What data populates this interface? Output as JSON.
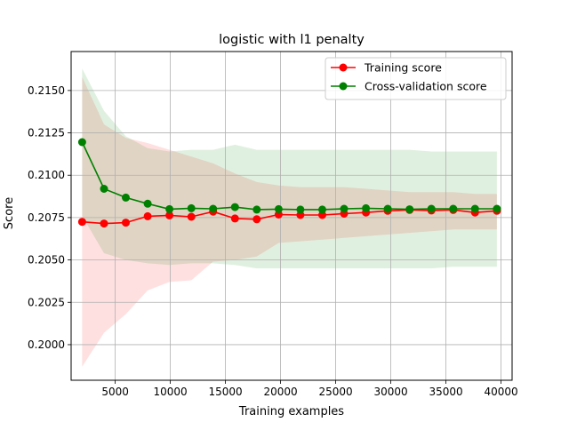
{
  "chart_data": {
    "type": "line",
    "title": "logistic with l1 penalty",
    "xlabel": "Training examples",
    "ylabel": "Score",
    "xlim": [
      1000,
      41000
    ],
    "ylim": [
      0.1979,
      0.2173
    ],
    "x_ticks": [
      5000,
      10000,
      15000,
      20000,
      25000,
      30000,
      35000,
      40000
    ],
    "x_tick_labels": [
      "5000",
      "10000",
      "15000",
      "20000",
      "25000",
      "30000",
      "35000",
      "40000"
    ],
    "y_ticks": [
      0.2,
      0.2025,
      0.205,
      0.2075,
      0.21,
      0.2125,
      0.215
    ],
    "y_tick_labels": [
      "0.2000",
      "0.2025",
      "0.2050",
      "0.2075",
      "0.2100",
      "0.2125",
      "0.2150"
    ],
    "grid": true,
    "legend_position": "top-right",
    "x": [
      2000,
      3980,
      5960,
      7940,
      9920,
      11900,
      13880,
      15860,
      17840,
      19820,
      21800,
      23780,
      25760,
      27740,
      29720,
      31700,
      33680,
      35660,
      37640,
      39620
    ],
    "series": [
      {
        "name": "Training score",
        "color": "#ff0000",
        "band_color": "#ff0000",
        "values": [
          0.20725,
          0.20715,
          0.2072,
          0.20758,
          0.20763,
          0.20755,
          0.20785,
          0.20745,
          0.2074,
          0.20768,
          0.20765,
          0.20765,
          0.20773,
          0.2078,
          0.2079,
          0.20795,
          0.20792,
          0.20795,
          0.2078,
          0.2079
        ],
        "upper": [
          0.2158,
          0.213,
          0.2122,
          0.2119,
          0.2115,
          0.2111,
          0.2107,
          0.2101,
          0.2096,
          0.2094,
          0.2093,
          0.2093,
          0.2093,
          0.2092,
          0.2091,
          0.209,
          0.209,
          0.209,
          0.2089,
          0.2089
        ],
        "lower": [
          0.1987,
          0.2007,
          0.2018,
          0.2032,
          0.2037,
          0.2038,
          0.2049,
          0.205,
          0.2052,
          0.206,
          0.2061,
          0.2062,
          0.2063,
          0.2064,
          0.2065,
          0.2066,
          0.2067,
          0.2068,
          0.2068,
          0.2068
        ]
      },
      {
        "name": "Cross-validation score",
        "color": "#008000",
        "band_color": "#008000",
        "values": [
          0.21195,
          0.2092,
          0.20868,
          0.20832,
          0.208,
          0.20805,
          0.20802,
          0.20812,
          0.20797,
          0.208,
          0.20797,
          0.20797,
          0.20802,
          0.20805,
          0.20802,
          0.20799,
          0.20802,
          0.20802,
          0.20802,
          0.20802
        ],
        "upper": [
          0.2163,
          0.2138,
          0.2123,
          0.2116,
          0.2114,
          0.2115,
          0.2115,
          0.2118,
          0.2115,
          0.2115,
          0.2115,
          0.2115,
          0.2115,
          0.2115,
          0.2115,
          0.2115,
          0.2114,
          0.2114,
          0.2114,
          0.2114
        ],
        "lower": [
          0.2076,
          0.2054,
          0.205,
          0.2048,
          0.2047,
          0.2048,
          0.2048,
          0.2047,
          0.2045,
          0.2045,
          0.2045,
          0.2045,
          0.2045,
          0.2045,
          0.2045,
          0.2045,
          0.2045,
          0.2046,
          0.2046,
          0.2046
        ]
      }
    ]
  }
}
